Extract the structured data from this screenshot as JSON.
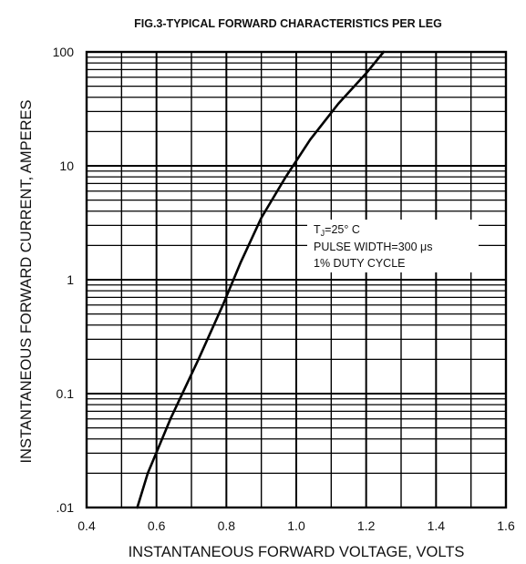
{
  "chart_data": {
    "type": "line",
    "title": "FIG.3-TYPICAL FORWARD CHARACTERISTICS PER LEG",
    "xlabel": "INSTANTANEOUS FORWARD VOLTAGE, VOLTS",
    "ylabel": "INSTANTANEOUS FORWARD CURRENT, AMPERES",
    "xlim": [
      0.4,
      1.6
    ],
    "ylim": [
      0.01,
      100
    ],
    "yscale": "log",
    "grid": true,
    "x_ticks": [
      "0.4",
      "0.6",
      "0.8",
      "1.0",
      "1.2",
      "1.4",
      "1.6"
    ],
    "y_ticks": [
      ".01",
      "0.1",
      "1",
      "10",
      "100"
    ],
    "series": [
      {
        "x": [
          0.545,
          0.575,
          0.64,
          0.72,
          0.79,
          0.84,
          0.9,
          0.97,
          1.04,
          1.12,
          1.2,
          1.25
        ],
        "y": [
          0.01,
          0.02,
          0.06,
          0.2,
          0.6,
          1.4,
          3.5,
          8,
          17,
          35,
          65,
          100
        ]
      }
    ],
    "annotation": {
      "line1_base": "T",
      "line1_sub": "J",
      "line1_rest": "=25° C",
      "line2": "PULSE WIDTH=300 μs",
      "line3": "1% DUTY CYCLE"
    },
    "line_color": "#000000",
    "grid_color": "#000000"
  }
}
